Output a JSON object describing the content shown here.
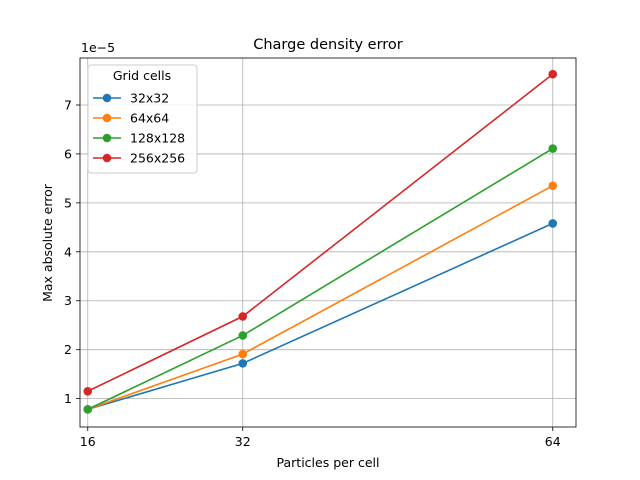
{
  "chart_data": {
    "type": "line",
    "title": "Charge density error",
    "xlabel": "Particles per cell",
    "ylabel": "Max absolute error",
    "x": [
      16,
      32,
      64
    ],
    "x_ticks": [
      "16",
      "32",
      "64"
    ],
    "xlim": [
      15.2,
      66.4
    ],
    "y_ticks": [
      1,
      2,
      3,
      4,
      5,
      6,
      7
    ],
    "y_tick_labels": [
      "1",
      "2",
      "3",
      "4",
      "5",
      "6",
      "7"
    ],
    "y_multiplier": "1e−5",
    "ylim": [
      0.42,
      7.96
    ],
    "grid": true,
    "legend": {
      "title": "Grid cells",
      "placement": "top-left"
    },
    "series": [
      {
        "name": "32x32",
        "color": "#1f77b4",
        "values": [
          0.78,
          1.72,
          4.58
        ]
      },
      {
        "name": "64x64",
        "color": "#ff7f0e",
        "values": [
          0.78,
          1.91,
          5.35
        ]
      },
      {
        "name": "128x128",
        "color": "#2ca02c",
        "values": [
          0.78,
          2.29,
          6.11
        ]
      },
      {
        "name": "256x256",
        "color": "#d62728",
        "values": [
          1.15,
          2.68,
          7.63
        ]
      }
    ]
  }
}
